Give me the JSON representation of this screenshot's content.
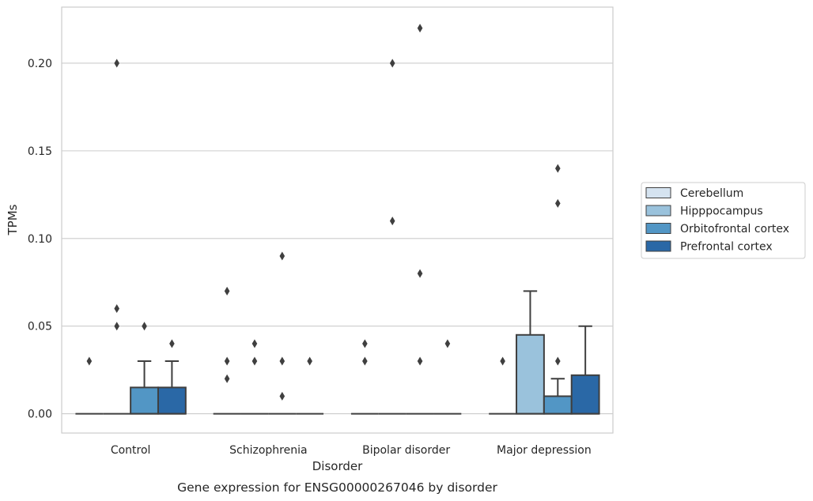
{
  "chart_data": {
    "type": "box",
    "title": "",
    "caption": "Gene expression for ENSG00000267046 by disorder",
    "xlabel": "Disorder",
    "ylabel": "TPMs",
    "ylim": [
      -0.011,
      0.232
    ],
    "yticks": [
      0.0,
      0.05,
      0.1,
      0.15,
      0.2
    ],
    "ytick_labels": [
      "0.00",
      "0.05",
      "0.10",
      "0.15",
      "0.20"
    ],
    "grid": "horizontal",
    "legend_position": "right",
    "categories": [
      "Control",
      "Schizophrenia",
      "Bipolar disorder",
      "Major depression"
    ],
    "series": [
      {
        "name": "Cerebellum",
        "color": "#d5e3f0",
        "boxes": [
          {
            "q1": 0,
            "median": 0,
            "q3": 0,
            "whislo": 0,
            "whishi": 0,
            "fliers": [
              0.03
            ]
          },
          {
            "q1": 0,
            "median": 0,
            "q3": 0,
            "whislo": 0,
            "whishi": 0,
            "fliers": [
              0.07,
              0.03,
              0.02
            ]
          },
          {
            "q1": 0,
            "median": 0,
            "q3": 0,
            "whislo": 0,
            "whishi": 0,
            "fliers": [
              0.04,
              0.03
            ]
          },
          {
            "q1": 0,
            "median": 0,
            "q3": 0,
            "whislo": 0,
            "whishi": 0,
            "fliers": [
              0.03
            ]
          }
        ]
      },
      {
        "name": "Hipppocampus",
        "color": "#9ac2dc",
        "boxes": [
          {
            "q1": 0,
            "median": 0,
            "q3": 0,
            "whislo": 0,
            "whishi": 0,
            "fliers": [
              0.2,
              0.06,
              0.05
            ]
          },
          {
            "q1": 0,
            "median": 0,
            "q3": 0,
            "whislo": 0,
            "whishi": 0,
            "fliers": [
              0.04,
              0.03
            ]
          },
          {
            "q1": 0,
            "median": 0,
            "q3": 0,
            "whislo": 0,
            "whishi": 0,
            "fliers": [
              0.2,
              0.11
            ]
          },
          {
            "q1": 0,
            "median": 0,
            "q3": 0.045,
            "whislo": 0,
            "whishi": 0.07,
            "fliers": []
          }
        ]
      },
      {
        "name": "Orbitofrontal cortex",
        "color": "#5296c5",
        "boxes": [
          {
            "q1": 0,
            "median": 0,
            "q3": 0.015,
            "whislo": 0,
            "whishi": 0.03,
            "fliers": [
              0.05
            ]
          },
          {
            "q1": 0,
            "median": 0,
            "q3": 0,
            "whislo": 0,
            "whishi": 0,
            "fliers": [
              0.09,
              0.03,
              0.01
            ]
          },
          {
            "q1": 0,
            "median": 0,
            "q3": 0,
            "whislo": 0,
            "whishi": 0,
            "fliers": [
              0.22,
              0.08,
              0.03
            ]
          },
          {
            "q1": 0,
            "median": 0,
            "q3": 0.01,
            "whislo": 0,
            "whishi": 0.02,
            "fliers": [
              0.14,
              0.12,
              0.03
            ]
          }
        ]
      },
      {
        "name": "Prefrontal cortex",
        "color": "#2a68a6",
        "boxes": [
          {
            "q1": 0,
            "median": 0,
            "q3": 0.015,
            "whislo": 0,
            "whishi": 0.03,
            "fliers": [
              0.04
            ]
          },
          {
            "q1": 0,
            "median": 0,
            "q3": 0,
            "whislo": 0,
            "whishi": 0,
            "fliers": [
              0.03
            ]
          },
          {
            "q1": 0,
            "median": 0,
            "q3": 0,
            "whislo": 0,
            "whishi": 0,
            "fliers": [
              0.04
            ]
          },
          {
            "q1": 0,
            "median": 0,
            "q3": 0.022,
            "whislo": 0,
            "whishi": 0.05,
            "fliers": []
          }
        ]
      }
    ]
  }
}
